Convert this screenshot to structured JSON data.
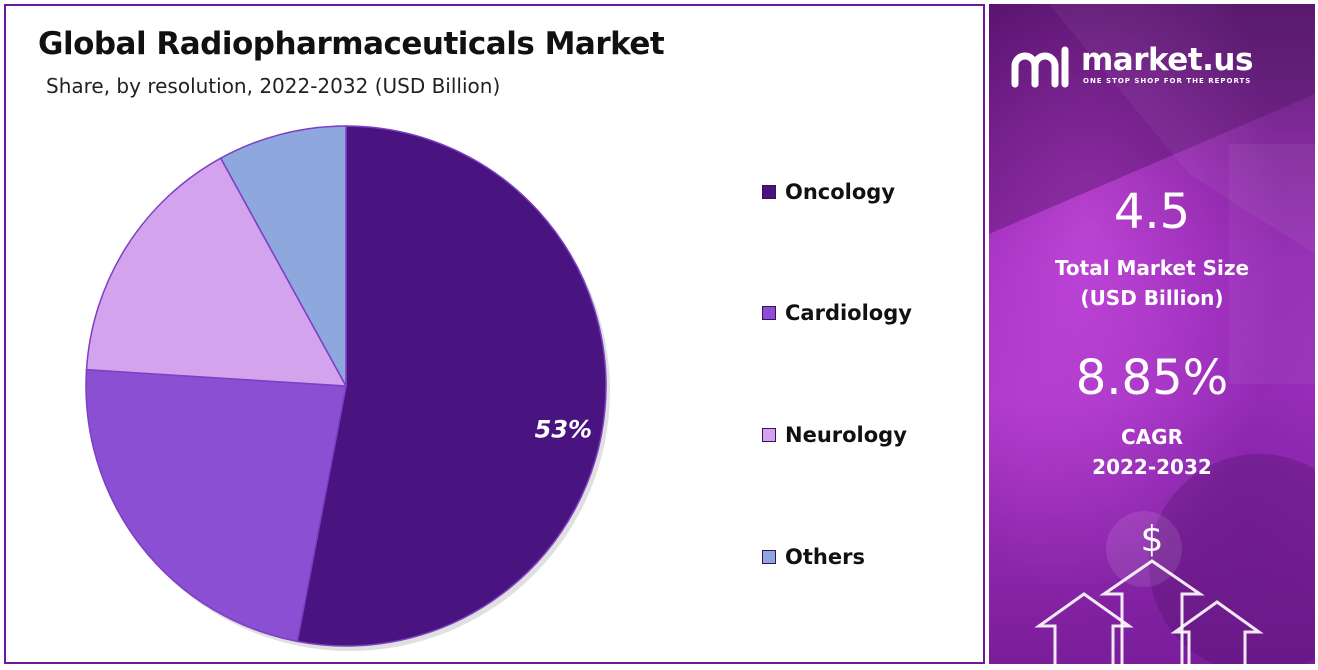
{
  "header": {
    "title": "Global Radiopharmaceuticals Market",
    "subtitle": "Share, by resolution, 2022-2032 (USD Billion)"
  },
  "chart_data": {
    "type": "pie",
    "title": "Global Radiopharmaceuticals Market",
    "subtitle": "Share, by resolution, 2022-2032 (USD Billion)",
    "slices": [
      {
        "name": "Oncology",
        "value": 53,
        "color": "#4a1480",
        "label": "53%"
      },
      {
        "name": "Cardiology",
        "value": 23,
        "color": "#8b4fd3",
        "label": ""
      },
      {
        "name": "Neurology",
        "value": 16,
        "color": "#d4a3ee",
        "label": ""
      },
      {
        "name": "Others",
        "value": 8,
        "color": "#8ea7dc",
        "label": ""
      }
    ],
    "start_angle_deg": 0,
    "direction": "clockwise",
    "legend_position": "right"
  },
  "legend": {
    "items": [
      {
        "label": "Oncology",
        "color": "#4a1480"
      },
      {
        "label": "Cardiology",
        "color": "#8b4fd3"
      },
      {
        "label": "Neurology",
        "color": "#d4a3ee"
      },
      {
        "label": "Others",
        "color": "#8ea7dc"
      }
    ]
  },
  "sidebar": {
    "brand_name": "market.us",
    "brand_tagline": "ONE STOP SHOP FOR THE REPORTS",
    "market_size_value": "4.5",
    "market_size_label_line1": "Total Market Size",
    "market_size_label_line2": "(USD Billion)",
    "cagr_value": "8.85%",
    "cagr_label": "CAGR",
    "cagr_period": "2022-2032",
    "dollar_symbol": "$",
    "icons": [
      "market-us-logo-icon",
      "dollar-icon",
      "up-arrow-icon"
    ]
  },
  "colors": {
    "border": "#6a1b9a",
    "sidebar_gradient_top": "#5a1270",
    "sidebar_gradient_mid": "#a734c4"
  }
}
